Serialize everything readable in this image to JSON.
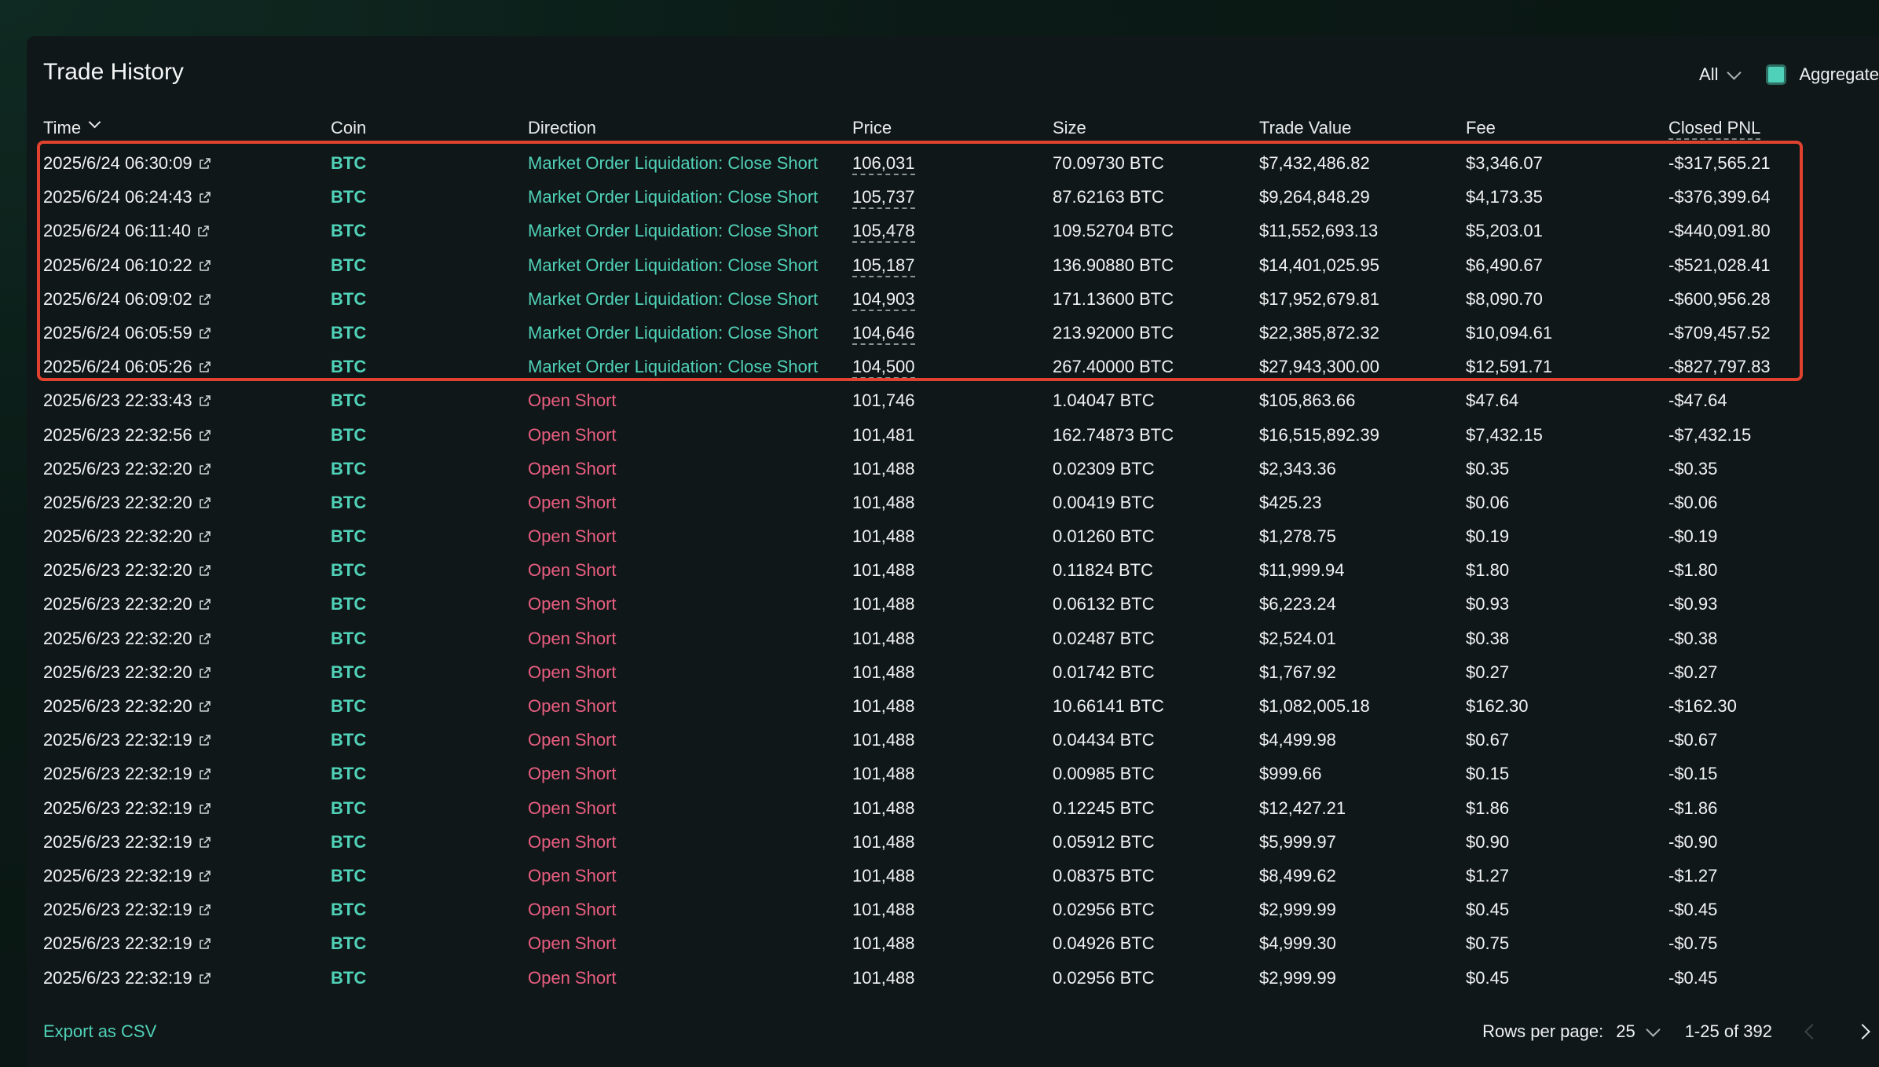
{
  "title": "Trade History",
  "filter": {
    "value": "All"
  },
  "aggregate": {
    "label": "Aggregate",
    "checked": true
  },
  "columns": {
    "time": "Time",
    "coin": "Coin",
    "direction": "Direction",
    "price": "Price",
    "size": "Size",
    "trade_value": "Trade Value",
    "fee": "Fee",
    "closed_pnl": "Closed PNL"
  },
  "rows": [
    {
      "time": "2025/6/24 06:30:09",
      "coin": "BTC",
      "direction": "Market Order Liquidation: Close Short",
      "price": "106,031",
      "size": "70.09730 BTC",
      "value": "$7,432,486.82",
      "fee": "$3,346.07",
      "pnl": "-$317,565.21",
      "type": "liq"
    },
    {
      "time": "2025/6/24 06:24:43",
      "coin": "BTC",
      "direction": "Market Order Liquidation: Close Short",
      "price": "105,737",
      "size": "87.62163 BTC",
      "value": "$9,264,848.29",
      "fee": "$4,173.35",
      "pnl": "-$376,399.64",
      "type": "liq"
    },
    {
      "time": "2025/6/24 06:11:40",
      "coin": "BTC",
      "direction": "Market Order Liquidation: Close Short",
      "price": "105,478",
      "size": "109.52704 BTC",
      "value": "$11,552,693.13",
      "fee": "$5,203.01",
      "pnl": "-$440,091.80",
      "type": "liq"
    },
    {
      "time": "2025/6/24 06:10:22",
      "coin": "BTC",
      "direction": "Market Order Liquidation: Close Short",
      "price": "105,187",
      "size": "136.90880 BTC",
      "value": "$14,401,025.95",
      "fee": "$6,490.67",
      "pnl": "-$521,028.41",
      "type": "liq"
    },
    {
      "time": "2025/6/24 06:09:02",
      "coin": "BTC",
      "direction": "Market Order Liquidation: Close Short",
      "price": "104,903",
      "size": "171.13600 BTC",
      "value": "$17,952,679.81",
      "fee": "$8,090.70",
      "pnl": "-$600,956.28",
      "type": "liq"
    },
    {
      "time": "2025/6/24 06:05:59",
      "coin": "BTC",
      "direction": "Market Order Liquidation: Close Short",
      "price": "104,646",
      "size": "213.92000 BTC",
      "value": "$22,385,872.32",
      "fee": "$10,094.61",
      "pnl": "-$709,457.52",
      "type": "liq"
    },
    {
      "time": "2025/6/24 06:05:26",
      "coin": "BTC",
      "direction": "Market Order Liquidation: Close Short",
      "price": "104,500",
      "size": "267.40000 BTC",
      "value": "$27,943,300.00",
      "fee": "$12,591.71",
      "pnl": "-$827,797.83",
      "type": "liq"
    },
    {
      "time": "2025/6/23 22:33:43",
      "coin": "BTC",
      "direction": "Open Short",
      "price": "101,746",
      "size": "1.04047 BTC",
      "value": "$105,863.66",
      "fee": "$47.64",
      "pnl": "-$47.64",
      "type": "open"
    },
    {
      "time": "2025/6/23 22:32:56",
      "coin": "BTC",
      "direction": "Open Short",
      "price": "101,481",
      "size": "162.74873 BTC",
      "value": "$16,515,892.39",
      "fee": "$7,432.15",
      "pnl": "-$7,432.15",
      "type": "open"
    },
    {
      "time": "2025/6/23 22:32:20",
      "coin": "BTC",
      "direction": "Open Short",
      "price": "101,488",
      "size": "0.02309 BTC",
      "value": "$2,343.36",
      "fee": "$0.35",
      "pnl": "-$0.35",
      "type": "open"
    },
    {
      "time": "2025/6/23 22:32:20",
      "coin": "BTC",
      "direction": "Open Short",
      "price": "101,488",
      "size": "0.00419 BTC",
      "value": "$425.23",
      "fee": "$0.06",
      "pnl": "-$0.06",
      "type": "open"
    },
    {
      "time": "2025/6/23 22:32:20",
      "coin": "BTC",
      "direction": "Open Short",
      "price": "101,488",
      "size": "0.01260 BTC",
      "value": "$1,278.75",
      "fee": "$0.19",
      "pnl": "-$0.19",
      "type": "open"
    },
    {
      "time": "2025/6/23 22:32:20",
      "coin": "BTC",
      "direction": "Open Short",
      "price": "101,488",
      "size": "0.11824 BTC",
      "value": "$11,999.94",
      "fee": "$1.80",
      "pnl": "-$1.80",
      "type": "open"
    },
    {
      "time": "2025/6/23 22:32:20",
      "coin": "BTC",
      "direction": "Open Short",
      "price": "101,488",
      "size": "0.06132 BTC",
      "value": "$6,223.24",
      "fee": "$0.93",
      "pnl": "-$0.93",
      "type": "open"
    },
    {
      "time": "2025/6/23 22:32:20",
      "coin": "BTC",
      "direction": "Open Short",
      "price": "101,488",
      "size": "0.02487 BTC",
      "value": "$2,524.01",
      "fee": "$0.38",
      "pnl": "-$0.38",
      "type": "open"
    },
    {
      "time": "2025/6/23 22:32:20",
      "coin": "BTC",
      "direction": "Open Short",
      "price": "101,488",
      "size": "0.01742 BTC",
      "value": "$1,767.92",
      "fee": "$0.27",
      "pnl": "-$0.27",
      "type": "open"
    },
    {
      "time": "2025/6/23 22:32:20",
      "coin": "BTC",
      "direction": "Open Short",
      "price": "101,488",
      "size": "10.66141 BTC",
      "value": "$1,082,005.18",
      "fee": "$162.30",
      "pnl": "-$162.30",
      "type": "open"
    },
    {
      "time": "2025/6/23 22:32:19",
      "coin": "BTC",
      "direction": "Open Short",
      "price": "101,488",
      "size": "0.04434 BTC",
      "value": "$4,499.98",
      "fee": "$0.67",
      "pnl": "-$0.67",
      "type": "open"
    },
    {
      "time": "2025/6/23 22:32:19",
      "coin": "BTC",
      "direction": "Open Short",
      "price": "101,488",
      "size": "0.00985 BTC",
      "value": "$999.66",
      "fee": "$0.15",
      "pnl": "-$0.15",
      "type": "open"
    },
    {
      "time": "2025/6/23 22:32:19",
      "coin": "BTC",
      "direction": "Open Short",
      "price": "101,488",
      "size": "0.12245 BTC",
      "value": "$12,427.21",
      "fee": "$1.86",
      "pnl": "-$1.86",
      "type": "open"
    },
    {
      "time": "2025/6/23 22:32:19",
      "coin": "BTC",
      "direction": "Open Short",
      "price": "101,488",
      "size": "0.05912 BTC",
      "value": "$5,999.97",
      "fee": "$0.90",
      "pnl": "-$0.90",
      "type": "open"
    },
    {
      "time": "2025/6/23 22:32:19",
      "coin": "BTC",
      "direction": "Open Short",
      "price": "101,488",
      "size": "0.08375 BTC",
      "value": "$8,499.62",
      "fee": "$1.27",
      "pnl": "-$1.27",
      "type": "open"
    },
    {
      "time": "2025/6/23 22:32:19",
      "coin": "BTC",
      "direction": "Open Short",
      "price": "101,488",
      "size": "0.02956 BTC",
      "value": "$2,999.99",
      "fee": "$0.45",
      "pnl": "-$0.45",
      "type": "open"
    },
    {
      "time": "2025/6/23 22:32:19",
      "coin": "BTC",
      "direction": "Open Short",
      "price": "101,488",
      "size": "0.04926 BTC",
      "value": "$4,999.30",
      "fee": "$0.75",
      "pnl": "-$0.75",
      "type": "open"
    },
    {
      "time": "2025/6/23 22:32:19",
      "coin": "BTC",
      "direction": "Open Short",
      "price": "101,488",
      "size": "0.02956 BTC",
      "value": "$2,999.99",
      "fee": "$0.45",
      "pnl": "-$0.45",
      "type": "open"
    }
  ],
  "footer": {
    "export_label": "Export as CSV",
    "rows_per_page_label": "Rows per page:",
    "rows_per_page_value": "25",
    "range_label": "1-25 of 392"
  },
  "colors": {
    "accent": "#50d2b8",
    "short": "#ea5e80",
    "highlight_box": "#e0422f",
    "panel_bg": "#101719"
  }
}
